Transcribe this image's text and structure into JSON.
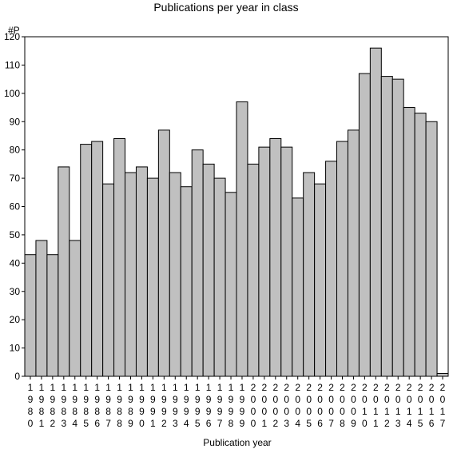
{
  "chart_data": {
    "type": "bar",
    "title": "Publications per year in class",
    "ylabel": "#P",
    "xlabel": "Publication year",
    "ylim": [
      0,
      120
    ],
    "yticks": [
      0,
      10,
      20,
      30,
      40,
      50,
      60,
      70,
      80,
      90,
      100,
      110,
      120
    ],
    "grid": false,
    "categories": [
      "1980",
      "1981",
      "1982",
      "1983",
      "1984",
      "1985",
      "1986",
      "1987",
      "1988",
      "1989",
      "1990",
      "1991",
      "1992",
      "1993",
      "1994",
      "1995",
      "1996",
      "1997",
      "1998",
      "1999",
      "2000",
      "2001",
      "2002",
      "2003",
      "2004",
      "2005",
      "2006",
      "2007",
      "2008",
      "2009",
      "2010",
      "2011",
      "2012",
      "2013",
      "2014",
      "2015",
      "2016",
      "2017"
    ],
    "values": [
      43,
      48,
      43,
      74,
      48,
      82,
      83,
      68,
      84,
      72,
      74,
      70,
      87,
      72,
      67,
      80,
      75,
      70,
      65,
      97,
      75,
      81,
      84,
      81,
      63,
      72,
      68,
      76,
      83,
      87,
      107,
      116,
      106,
      105,
      95,
      93,
      90,
      1
    ],
    "colors": {
      "bar_fill": "#c0c0c0",
      "bar_stroke": "#000000"
    }
  }
}
